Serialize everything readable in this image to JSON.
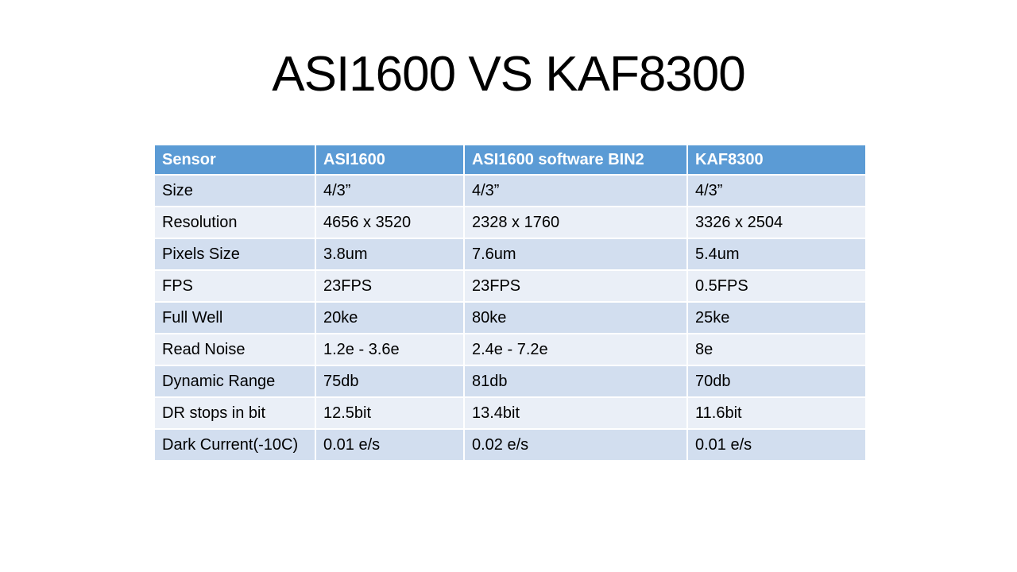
{
  "title": "ASI1600 VS KAF8300",
  "table": {
    "header": [
      "Sensor",
      "ASI1600",
      "ASI1600 software BIN2",
      "KAF8300"
    ],
    "rows": [
      [
        "Size",
        "4/3”",
        "4/3”",
        "4/3”"
      ],
      [
        "Resolution",
        "4656 x 3520",
        "2328 x 1760",
        "3326 x 2504"
      ],
      [
        "Pixels Size",
        "3.8um",
        "7.6um",
        "5.4um"
      ],
      [
        "FPS",
        "23FPS",
        "23FPS",
        "0.5FPS"
      ],
      [
        "Full Well",
        "20ke",
        "80ke",
        "25ke"
      ],
      [
        "Read Noise",
        "1.2e - 3.6e",
        "2.4e - 7.2e",
        "8e"
      ],
      [
        "Dynamic Range",
        "75db",
        "81db",
        "70db"
      ],
      [
        "DR stops in bit",
        "12.5bit",
        "13.4bit",
        "11.6bit"
      ],
      [
        "Dark Current(-10C)",
        "0.01 e/s",
        "0.02 e/s",
        "0.01 e/s"
      ]
    ]
  }
}
